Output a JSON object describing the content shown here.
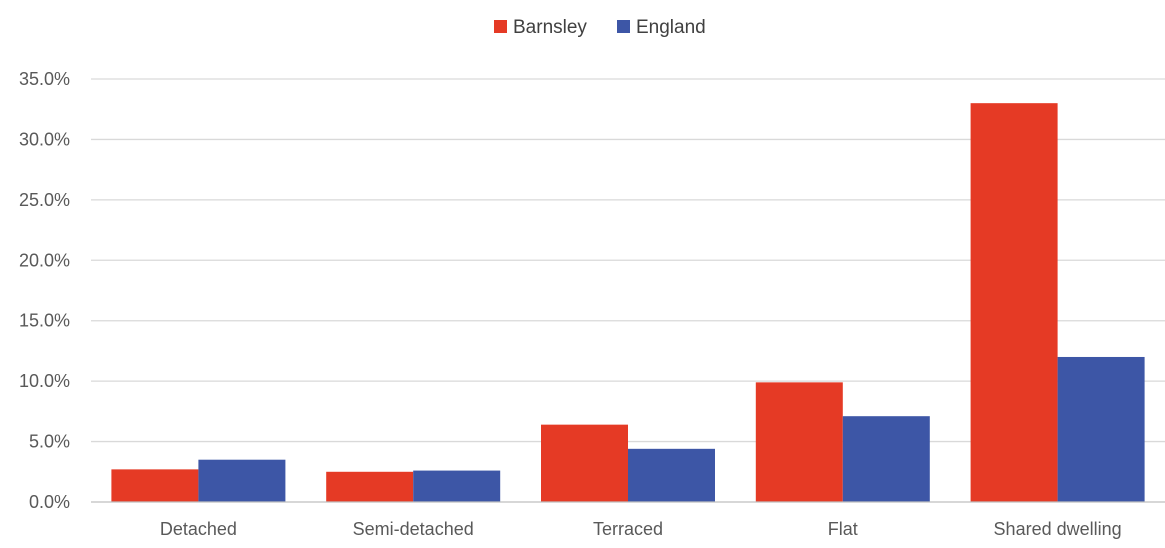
{
  "chart_data": {
    "type": "bar",
    "categories": [
      "Detached",
      "Semi-detached",
      "Terraced",
      "Flat",
      "Shared dwelling"
    ],
    "series": [
      {
        "name": "Barnsley",
        "color": "#e53a25",
        "values": [
          2.7,
          2.5,
          6.4,
          9.9,
          33.0
        ]
      },
      {
        "name": "England",
        "color": "#3d56a6",
        "values": [
          3.5,
          2.6,
          4.4,
          7.1,
          12.0
        ]
      }
    ],
    "title": "",
    "xlabel": "",
    "ylabel": "",
    "ylim": [
      0,
      35
    ],
    "yticks": [
      0,
      5,
      10,
      15,
      20,
      25,
      30,
      35
    ],
    "ytick_labels": [
      "0.0%",
      "5.0%",
      "10.0%",
      "15.0%",
      "20.0%",
      "25.0%",
      "30.0%",
      "35.0%"
    ],
    "grid": true,
    "legend_position": "top-center",
    "gridline_color": "#d9d9d9",
    "axis_color": "#bfbfbf"
  }
}
